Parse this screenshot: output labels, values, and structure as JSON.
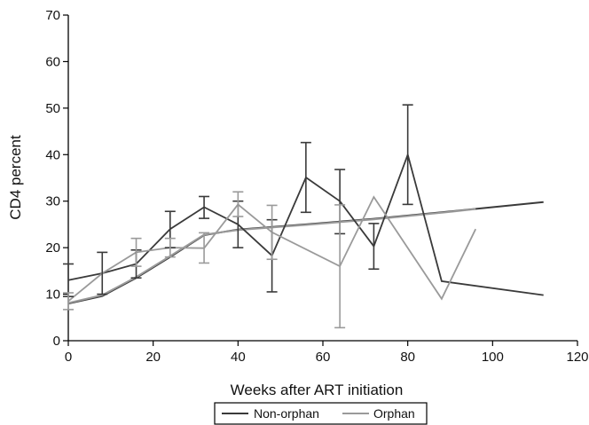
{
  "chart_data": {
    "type": "line",
    "title": "",
    "xlabel": "Weeks after ART initiation",
    "ylabel": "CD4 percent",
    "xlim": [
      0,
      120
    ],
    "ylim": [
      0,
      70
    ],
    "x_ticks": [
      0,
      20,
      40,
      60,
      80,
      100,
      120
    ],
    "y_ticks": [
      0,
      10,
      20,
      30,
      40,
      50,
      60,
      70
    ],
    "grid": false,
    "legend": {
      "placement": "bottom-center",
      "entries": [
        "Non-orphan",
        "Orphan"
      ]
    },
    "series": [
      {
        "name": "Non-orphan",
        "color": "#3a3a3a",
        "points": [
          {
            "x": 0,
            "y": 13,
            "lo": 9.5,
            "hi": 16.5
          },
          {
            "x": 8,
            "y": 14.5,
            "lo": 10,
            "hi": 19
          },
          {
            "x": 16,
            "y": 16.5,
            "lo": 13.5,
            "hi": 19.5
          },
          {
            "x": 24,
            "y": 24,
            "lo": 20,
            "hi": 27.8
          },
          {
            "x": 32,
            "y": 28.7,
            "lo": 26.3,
            "hi": 31
          },
          {
            "x": 40,
            "y": 25,
            "lo": 20,
            "hi": 30
          },
          {
            "x": 48,
            "y": 18.3,
            "lo": 10.5,
            "hi": 26
          },
          {
            "x": 56,
            "y": 35.1,
            "lo": 27.6,
            "hi": 42.6
          },
          {
            "x": 64,
            "y": 30,
            "lo": 23,
            "hi": 36.8
          },
          {
            "x": 72,
            "y": 20.3,
            "lo": 15.4,
            "hi": 25.2
          },
          {
            "x": 80,
            "y": 40,
            "lo": 29.3,
            "hi": 50.7
          },
          {
            "x": 88,
            "y": 12.8
          },
          {
            "x": 112,
            "y": 9.8
          }
        ],
        "fit": [
          {
            "x": 0,
            "y": 8
          },
          {
            "x": 8,
            "y": 9.6
          },
          {
            "x": 16,
            "y": 13.5
          },
          {
            "x": 24,
            "y": 18
          },
          {
            "x": 32,
            "y": 22.7
          },
          {
            "x": 40,
            "y": 23.9
          },
          {
            "x": 56,
            "y": 25
          },
          {
            "x": 72,
            "y": 26.2
          },
          {
            "x": 88,
            "y": 27.6
          },
          {
            "x": 112,
            "y": 29.8
          }
        ]
      },
      {
        "name": "Orphan",
        "color": "#9a9a9a",
        "points": [
          {
            "x": 0,
            "y": 8.5,
            "lo": 6.7,
            "hi": 10.3
          },
          {
            "x": 8,
            "y": 14.5
          },
          {
            "x": 16,
            "y": 19,
            "lo": 16,
            "hi": 22
          },
          {
            "x": 24,
            "y": 20,
            "lo": 18,
            "hi": 22
          },
          {
            "x": 32,
            "y": 19.9,
            "lo": 16.7,
            "hi": 23.2
          },
          {
            "x": 40,
            "y": 29.3,
            "lo": 26.7,
            "hi": 32
          },
          {
            "x": 48,
            "y": 23.3,
            "lo": 17.5,
            "hi": 29.1
          },
          {
            "x": 64,
            "y": 16,
            "lo": 2.8,
            "hi": 29.2
          },
          {
            "x": 72,
            "y": 30.9
          },
          {
            "x": 88,
            "y": 9
          },
          {
            "x": 96,
            "y": 24
          }
        ],
        "fit": [
          {
            "x": 0,
            "y": 8.1
          },
          {
            "x": 8,
            "y": 9.8
          },
          {
            "x": 16,
            "y": 13.7
          },
          {
            "x": 24,
            "y": 18.2
          },
          {
            "x": 32,
            "y": 22.8
          },
          {
            "x": 40,
            "y": 23.8
          },
          {
            "x": 56,
            "y": 24.9
          },
          {
            "x": 72,
            "y": 26.1
          },
          {
            "x": 88,
            "y": 27.5
          },
          {
            "x": 96,
            "y": 28.3
          }
        ]
      }
    ]
  }
}
